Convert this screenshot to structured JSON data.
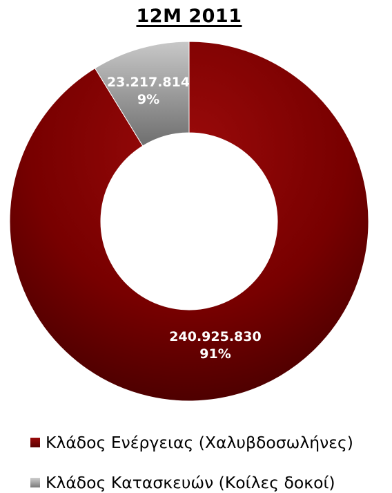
{
  "chart_data": {
    "type": "pie",
    "donut": true,
    "title": "12M 2011",
    "categories": [
      "Κλάδος Ενέργειας (Χαλυβδοσωλήνες)",
      "Κλάδος Κατασκευών (Κοίλες δοκοί)"
    ],
    "values": [
      240925830,
      23217814
    ],
    "value_labels": [
      "240.925.830",
      "23.217.814"
    ],
    "percent_labels": [
      "91%",
      "9%"
    ],
    "colors": [
      "#7a0000",
      "#a6a6a6"
    ],
    "legend_position": "bottom"
  }
}
